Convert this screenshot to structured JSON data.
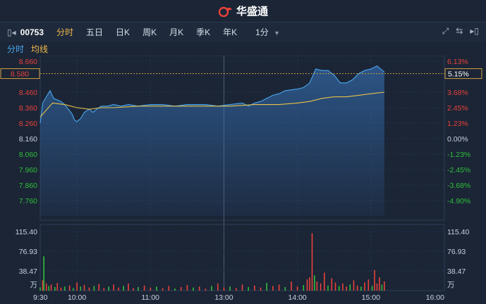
{
  "header": {
    "brand_name": "华盛通"
  },
  "toolbar": {
    "stock_code": "00753",
    "tabs": [
      {
        "label": "分时",
        "active": true
      },
      {
        "label": "五日",
        "active": false
      },
      {
        "label": "日K",
        "active": false
      },
      {
        "label": "周K",
        "active": false
      },
      {
        "label": "月K",
        "active": false
      },
      {
        "label": "季K",
        "active": false
      },
      {
        "label": "年K",
        "active": false
      }
    ],
    "period": "1分"
  },
  "legend": {
    "price_label": "分时",
    "avg_label": "均线"
  },
  "colors": {
    "up": "#e8423a",
    "down": "#2fbf3a",
    "price_line": "#4aa8f0",
    "avg_line": "#e8c14a",
    "background": "#1b2536"
  },
  "chart_data": {
    "type": "line",
    "prev_close": 8.16,
    "price_axis": {
      "ticks": [
        "8.660",
        "8.580",
        "8.460",
        "8.360",
        "8.260",
        "8.160",
        "8.060",
        "7.960",
        "7.860",
        "7.760"
      ],
      "pct_ticks": [
        "6.13%",
        "5.15%",
        "3.68%",
        "2.45%",
        "1.23%",
        "0.00%",
        "-1.23%",
        "-2.45%",
        "-3.68%",
        "-4.90%"
      ],
      "range": [
        7.66,
        8.66
      ]
    },
    "volume_axis": {
      "ticks": [
        "115.40",
        "76.93",
        "38.47"
      ],
      "unit": "万",
      "range": [
        0,
        115.4
      ]
    },
    "time_axis": [
      "9:30",
      "10:00",
      "11:00",
      "13:00",
      "14:00",
      "15:00",
      "16:00"
    ],
    "crosshair": {
      "price": "8.580",
      "pct": "5.15%"
    },
    "price_series": [
      [
        0,
        8.26
      ],
      [
        2,
        8.39
      ],
      [
        5,
        8.43
      ],
      [
        8,
        8.47
      ],
      [
        11,
        8.42
      ],
      [
        14,
        8.41
      ],
      [
        17,
        8.4
      ],
      [
        20,
        8.38
      ],
      [
        23,
        8.35
      ],
      [
        26,
        8.32
      ],
      [
        28,
        8.28
      ],
      [
        30,
        8.27
      ],
      [
        33,
        8.29
      ],
      [
        36,
        8.33
      ],
      [
        40,
        8.35
      ],
      [
        43,
        8.33
      ],
      [
        46,
        8.35
      ],
      [
        50,
        8.37
      ],
      [
        55,
        8.37
      ],
      [
        60,
        8.38
      ],
      [
        66,
        8.37
      ],
      [
        72,
        8.38
      ],
      [
        80,
        8.37
      ],
      [
        90,
        8.38
      ],
      [
        100,
        8.38
      ],
      [
        110,
        8.37
      ],
      [
        120,
        8.38
      ],
      [
        125,
        8.38
      ],
      [
        135,
        8.38
      ],
      [
        145,
        8.37
      ],
      [
        155,
        8.38
      ],
      [
        165,
        8.39
      ],
      [
        170,
        8.37
      ],
      [
        175,
        8.39
      ],
      [
        180,
        8.4
      ],
      [
        185,
        8.42
      ],
      [
        190,
        8.44
      ],
      [
        195,
        8.45
      ],
      [
        200,
        8.47
      ],
      [
        210,
        8.48
      ],
      [
        215,
        8.49
      ],
      [
        220,
        8.52
      ],
      [
        225,
        8.61
      ],
      [
        230,
        8.6
      ],
      [
        235,
        8.6
      ],
      [
        240,
        8.57
      ],
      [
        245,
        8.52
      ],
      [
        250,
        8.52
      ],
      [
        255,
        8.54
      ],
      [
        260,
        8.58
      ],
      [
        265,
        8.6
      ],
      [
        270,
        8.61
      ],
      [
        275,
        8.63
      ],
      [
        278,
        8.61
      ],
      [
        281,
        8.59
      ]
    ],
    "avg_series": [
      [
        0,
        8.3
      ],
      [
        10,
        8.39
      ],
      [
        20,
        8.38
      ],
      [
        30,
        8.36
      ],
      [
        40,
        8.35
      ],
      [
        50,
        8.36
      ],
      [
        60,
        8.36
      ],
      [
        80,
        8.37
      ],
      [
        100,
        8.37
      ],
      [
        120,
        8.37
      ],
      [
        135,
        8.37
      ],
      [
        155,
        8.37
      ],
      [
        175,
        8.38
      ],
      [
        195,
        8.38
      ],
      [
        210,
        8.39
      ],
      [
        220,
        8.4
      ],
      [
        230,
        8.42
      ],
      [
        240,
        8.43
      ],
      [
        250,
        8.43
      ],
      [
        260,
        8.44
      ],
      [
        270,
        8.45
      ],
      [
        281,
        8.46
      ]
    ],
    "volume_series": [
      {
        "t": 0,
        "v": 6,
        "up": false
      },
      {
        "t": 2,
        "v": 20,
        "up": true
      },
      {
        "t": 3,
        "v": 67,
        "up": false
      },
      {
        "t": 5,
        "v": 14,
        "up": true
      },
      {
        "t": 7,
        "v": 9,
        "up": false
      },
      {
        "t": 9,
        "v": 12,
        "up": true
      },
      {
        "t": 12,
        "v": 7,
        "up": false
      },
      {
        "t": 14,
        "v": 15,
        "up": true
      },
      {
        "t": 17,
        "v": 6,
        "up": true
      },
      {
        "t": 20,
        "v": 8,
        "up": false
      },
      {
        "t": 24,
        "v": 10,
        "up": true
      },
      {
        "t": 27,
        "v": 5,
        "up": false
      },
      {
        "t": 30,
        "v": 16,
        "up": true
      },
      {
        "t": 33,
        "v": 8,
        "up": false
      },
      {
        "t": 36,
        "v": 11,
        "up": true
      },
      {
        "t": 40,
        "v": 6,
        "up": true
      },
      {
        "t": 44,
        "v": 9,
        "up": false
      },
      {
        "t": 48,
        "v": 13,
        "up": true
      },
      {
        "t": 52,
        "v": 5,
        "up": true
      },
      {
        "t": 56,
        "v": 8,
        "up": false
      },
      {
        "t": 60,
        "v": 12,
        "up": true
      },
      {
        "t": 64,
        "v": 6,
        "up": true
      },
      {
        "t": 68,
        "v": 9,
        "up": false
      },
      {
        "t": 72,
        "v": 14,
        "up": true
      },
      {
        "t": 76,
        "v": 5,
        "up": true
      },
      {
        "t": 80,
        "v": 7,
        "up": false
      },
      {
        "t": 85,
        "v": 10,
        "up": true
      },
      {
        "t": 90,
        "v": 6,
        "up": true
      },
      {
        "t": 95,
        "v": 8,
        "up": false
      },
      {
        "t": 100,
        "v": 5,
        "up": true
      },
      {
        "t": 105,
        "v": 9,
        "up": true
      },
      {
        "t": 110,
        "v": 4,
        "up": false
      },
      {
        "t": 115,
        "v": 7,
        "up": true
      },
      {
        "t": 120,
        "v": 11,
        "up": true
      },
      {
        "t": 125,
        "v": 6,
        "up": false
      },
      {
        "t": 130,
        "v": 8,
        "up": true
      },
      {
        "t": 135,
        "v": 4,
        "up": true
      },
      {
        "t": 140,
        "v": 9,
        "up": false
      },
      {
        "t": 145,
        "v": 14,
        "up": true
      },
      {
        "t": 150,
        "v": 6,
        "up": true
      },
      {
        "t": 155,
        "v": 8,
        "up": false
      },
      {
        "t": 160,
        "v": 5,
        "up": true
      },
      {
        "t": 165,
        "v": 12,
        "up": true
      },
      {
        "t": 170,
        "v": 7,
        "up": false
      },
      {
        "t": 175,
        "v": 10,
        "up": true
      },
      {
        "t": 180,
        "v": 6,
        "up": true
      },
      {
        "t": 185,
        "v": 15,
        "up": false
      },
      {
        "t": 190,
        "v": 9,
        "up": true
      },
      {
        "t": 195,
        "v": 12,
        "up": true
      },
      {
        "t": 200,
        "v": 7,
        "up": false
      },
      {
        "t": 205,
        "v": 18,
        "up": true
      },
      {
        "t": 210,
        "v": 8,
        "up": true
      },
      {
        "t": 215,
        "v": 11,
        "up": false
      },
      {
        "t": 218,
        "v": 22,
        "up": true
      },
      {
        "t": 220,
        "v": 26,
        "up": true
      },
      {
        "t": 222,
        "v": 112,
        "up": true
      },
      {
        "t": 224,
        "v": 30,
        "up": false
      },
      {
        "t": 226,
        "v": 18,
        "up": true
      },
      {
        "t": 229,
        "v": 14,
        "up": true
      },
      {
        "t": 232,
        "v": 35,
        "up": true
      },
      {
        "t": 235,
        "v": 10,
        "up": false
      },
      {
        "t": 238,
        "v": 24,
        "up": true
      },
      {
        "t": 241,
        "v": 16,
        "up": true
      },
      {
        "t": 244,
        "v": 9,
        "up": false
      },
      {
        "t": 247,
        "v": 14,
        "up": true
      },
      {
        "t": 250,
        "v": 8,
        "up": true
      },
      {
        "t": 253,
        "v": 12,
        "up": false
      },
      {
        "t": 256,
        "v": 20,
        "up": true
      },
      {
        "t": 259,
        "v": 10,
        "up": true
      },
      {
        "t": 262,
        "v": 8,
        "up": false
      },
      {
        "t": 265,
        "v": 16,
        "up": true
      },
      {
        "t": 268,
        "v": 22,
        "up": true
      },
      {
        "t": 271,
        "v": 9,
        "up": false
      },
      {
        "t": 273,
        "v": 40,
        "up": true
      },
      {
        "t": 275,
        "v": 14,
        "up": true
      },
      {
        "t": 277,
        "v": 26,
        "up": true
      },
      {
        "t": 279,
        "v": 12,
        "up": false
      },
      {
        "t": 281,
        "v": 18,
        "up": true
      }
    ]
  }
}
